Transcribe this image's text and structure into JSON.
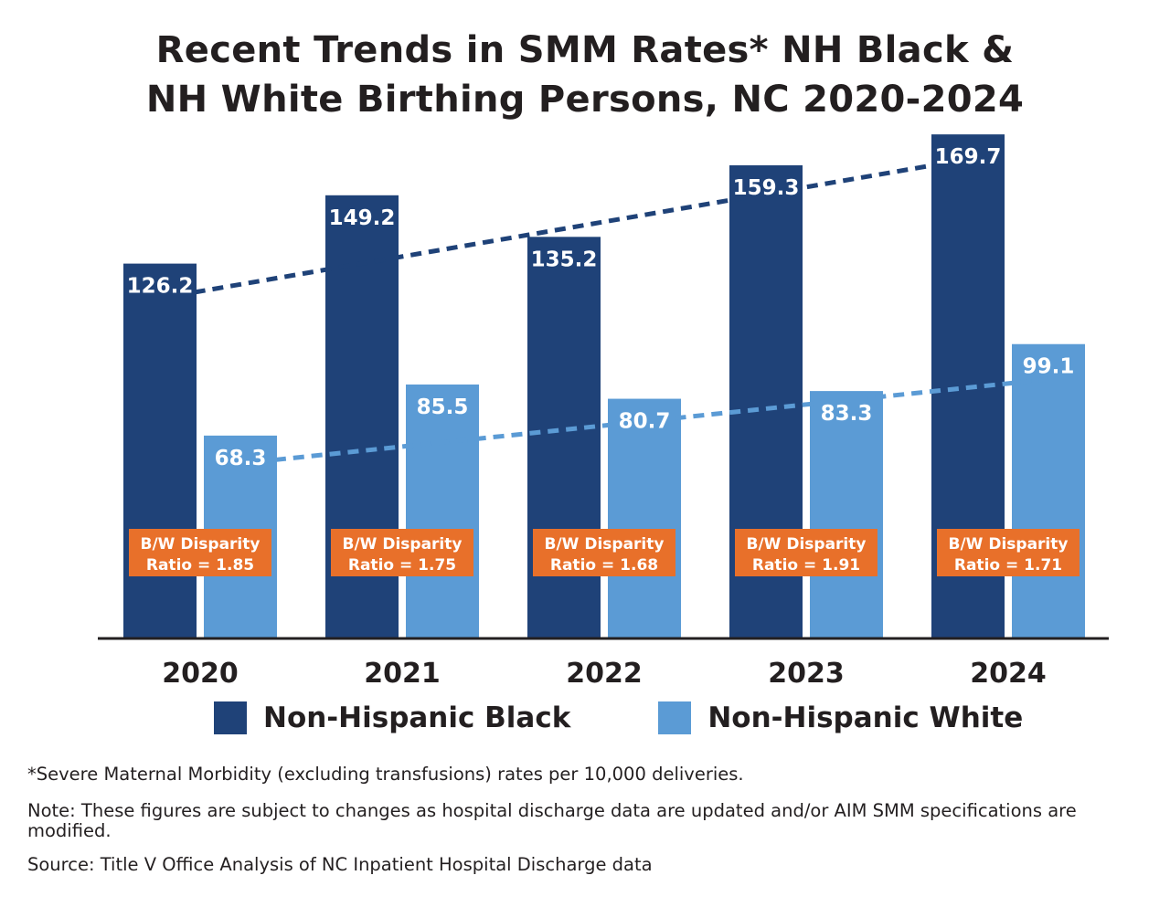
{
  "chart_data": {
    "type": "bar",
    "title_line1": "Recent Trends in SMM Rates* NH Black &",
    "title_line2": "NH White Birthing Persons, NC 2020-2024",
    "categories": [
      "2020",
      "2021",
      "2022",
      "2023",
      "2024"
    ],
    "series": [
      {
        "name": "Non-Hispanic Black",
        "color": "#1f4278",
        "values": [
          126.2,
          149.2,
          135.2,
          159.3,
          169.7
        ],
        "labels": [
          "126.2",
          "149.2",
          "135.2",
          "159.3",
          "169.7"
        ],
        "trendline": true
      },
      {
        "name": "Non-Hispanic White",
        "color": "#5b9bd5",
        "values": [
          68.3,
          85.5,
          80.7,
          83.3,
          99.1
        ],
        "labels": [
          "68.3",
          "85.5",
          "80.7",
          "83.3",
          "99.1"
        ],
        "trendline": true
      }
    ],
    "annotations": [
      {
        "line1": "B/W Disparity",
        "line2": "Ratio = 1.85"
      },
      {
        "line1": "B/W Disparity",
        "line2": "Ratio = 1.75"
      },
      {
        "line1": "B/W Disparity",
        "line2": "Ratio = 1.68"
      },
      {
        "line1": "B/W Disparity",
        "line2": "Ratio = 1.91"
      },
      {
        "line1": "B/W Disparity",
        "line2": "Ratio = 1.71"
      }
    ],
    "annotation_color": "#e8702a",
    "ylim": [
      0,
      180
    ],
    "xlabel": "",
    "ylabel": "",
    "grid": false,
    "legend_position": "bottom"
  },
  "footnotes": {
    "definition": "*Severe Maternal Morbidity (excluding transfusions) rates per 10,000 deliveries.",
    "note": "Note: These figures are subject to changes as hospital discharge data are updated and/or AIM SMM specifications are modified.",
    "source": "Source: Title V Office Analysis of NC Inpatient Hospital Discharge data"
  }
}
